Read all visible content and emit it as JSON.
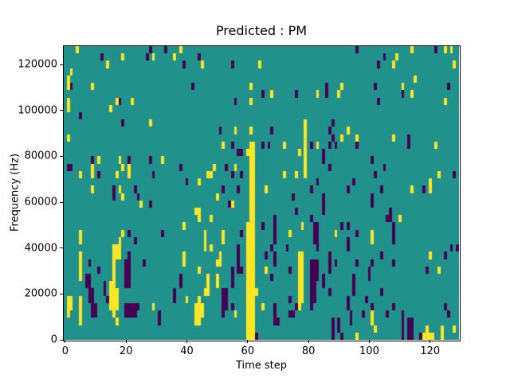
{
  "chart": {
    "title": "Predicted : PM",
    "xlabel": "Time step",
    "ylabel": "Frequency (Hz)"
  },
  "chart_data": {
    "type": "heatmap",
    "title": "Predicted : PM",
    "xlabel": "Time step",
    "ylabel": "Frequency (Hz)",
    "x_ticks": [
      0,
      20,
      40,
      60,
      80,
      100,
      120
    ],
    "y_ticks": [
      0,
      20000,
      40000,
      60000,
      80000,
      100000,
      120000
    ],
    "x_range": [
      -0.5,
      129.5
    ],
    "y_range": [
      0,
      128000
    ],
    "n_cols": 130,
    "n_rows": 40,
    "legend": "rows listed top (128000 Hz) to bottom (0 Hz); Y = high value (yellow), P = low value (purple), all other cells = mid value (teal)",
    "colors": {
      "mid": "#21918c",
      "high": "#fde725",
      "low": "#440154"
    },
    "rows": [
      {
        "r": 0,
        "Y": [
          4,
          38,
          114,
          125,
          127
        ],
        "P": [
          28,
          33,
          96,
          122
        ]
      },
      {
        "r": 1,
        "Y": [
          19,
          29,
          36,
          109
        ],
        "P": [
          12,
          27,
          44,
          105
        ]
      },
      {
        "r": 2,
        "Y": [
          14,
          45,
          64,
          108,
          128
        ],
        "P": [
          39,
          55,
          103
        ]
      },
      {
        "r": 3,
        "Y": [
          2
        ],
        "P": []
      },
      {
        "r": 4,
        "Y": [
          1,
          115
        ],
        "P": []
      },
      {
        "r": 5,
        "Y": [
          1,
          9,
          61,
          91,
          111
        ],
        "P": [
          2,
          42,
          86,
          102,
          126
        ]
      },
      {
        "r": 6,
        "Y": [
          68,
          83,
          90,
          114
        ],
        "P": [
          65,
          76,
          86,
          111
        ]
      },
      {
        "r": 7,
        "Y": [
          1,
          17,
          22,
          61,
          125
        ],
        "P": [
          18,
          56,
          103
        ]
      },
      {
        "r": 8,
        "Y": [
          1,
          15
        ],
        "P": []
      },
      {
        "r": 9,
        "Y": [],
        "P": [
          5
        ]
      },
      {
        "r": 10,
        "Y": [
          28,
          79
        ],
        "P": [
          19,
          88
        ]
      },
      {
        "r": 11,
        "Y": [
          56,
          61,
          79,
          93
        ],
        "P": [
          51,
          68,
          87
        ]
      },
      {
        "r": 12,
        "Y": [
          1,
          79,
          91,
          96,
          108
        ],
        "P": [
          88,
          113
        ]
      },
      {
        "r": 13,
        "Y": [
          52,
          61,
          62,
          72,
          79,
          83,
          122
        ],
        "P": [
          55,
          65,
          67,
          81,
          87,
          89,
          96,
          113
        ]
      },
      {
        "r": 14,
        "Y": [
          60,
          61,
          62,
          77,
          79
        ],
        "P": [
          57,
          58,
          85
        ]
      },
      {
        "r": 15,
        "Y": [
          11,
          18,
          32,
          61,
          62,
          79
        ],
        "P": [
          9,
          21,
          28,
          85,
          101
        ]
      },
      {
        "r": 16,
        "Y": [
          9,
          19,
          21,
          49,
          56,
          61,
          62,
          79
        ],
        "P": [
          1,
          2,
          38,
          53,
          87,
          105
        ]
      },
      {
        "r": 17,
        "Y": [
          5,
          9,
          17,
          21,
          47,
          48,
          61,
          62,
          72,
          76,
          79,
          123
        ],
        "P": [
          11,
          29,
          55,
          58,
          102,
          128
        ]
      },
      {
        "r": 18,
        "Y": [
          44,
          61,
          62,
          120
        ],
        "P": [
          40,
          83,
          95
        ]
      },
      {
        "r": 19,
        "Y": [
          9,
          18,
          61,
          62,
          66,
          114,
          120
        ],
        "P": [
          16,
          23,
          52,
          57,
          81,
          93,
          104,
          118
        ]
      },
      {
        "r": 20,
        "Y": [
          19,
          50,
          61,
          62
        ],
        "P": [
          16,
          24,
          75,
          85,
          101
        ]
      },
      {
        "r": 21,
        "Y": [
          25,
          55,
          61,
          62
        ],
        "P": [
          28,
          54,
          85,
          101
        ]
      },
      {
        "r": 22,
        "Y": [
          43,
          44,
          61,
          62
        ],
        "P": [
          76,
          85,
          107
        ]
      },
      {
        "r": 23,
        "Y": [
          44,
          48,
          61,
          62,
          110
        ],
        "P": [
          69,
          81,
          106,
          107
        ]
      },
      {
        "r": 24,
        "Y": [
          39,
          60,
          61,
          62,
          78
        ],
        "P": [
          65,
          69,
          82,
          83,
          91,
          93,
          108
        ]
      },
      {
        "r": 25,
        "Y": [
          5,
          19,
          46,
          52,
          60,
          61,
          62,
          74,
          89,
          101
        ],
        "P": [
          21,
          32,
          58,
          69,
          82,
          83,
          96,
          108
        ]
      },
      {
        "r": 26,
        "Y": [
          5,
          18,
          46,
          52,
          60,
          61,
          62,
          101
        ],
        "P": [
          23,
          69,
          82,
          83,
          93,
          108
        ]
      },
      {
        "r": 27,
        "Y": [
          16,
          17,
          18,
          46,
          48,
          60,
          61,
          62
        ],
        "P": [
          57,
          68,
          73,
          83,
          93,
          127,
          129
        ]
      },
      {
        "r": 28,
        "Y": [
          5,
          16,
          17,
          18,
          39,
          51,
          60,
          61,
          62,
          77,
          78,
          120
        ],
        "P": [
          21,
          57,
          66,
          69,
          87,
          104,
          125
        ]
      },
      {
        "r": 29,
        "Y": [
          5,
          16,
          39,
          50,
          51,
          60,
          61,
          62,
          77,
          78
        ],
        "P": [
          8,
          20,
          21,
          26,
          57,
          69,
          81,
          82,
          83,
          87,
          89,
          96,
          101,
          108
        ]
      },
      {
        "r": 30,
        "Y": [
          5,
          16,
          44,
          60,
          61,
          62,
          66,
          77,
          78,
          123
        ],
        "P": [
          11,
          20,
          21,
          55,
          57,
          58,
          74,
          81,
          82,
          83,
          87,
          100,
          119
        ]
      },
      {
        "r": 31,
        "Y": [
          5,
          16,
          47,
          50,
          60,
          61,
          62,
          77,
          78
        ],
        "P": [
          7,
          8,
          20,
          21,
          38,
          55,
          68,
          81,
          82,
          83,
          85,
          95,
          100
        ]
      },
      {
        "r": 32,
        "Y": [
          15,
          16,
          47,
          50,
          60,
          61,
          62,
          77,
          78
        ],
        "P": [
          7,
          8,
          13,
          20,
          21,
          38,
          55,
          81,
          82,
          85,
          95
        ]
      },
      {
        "r": 33,
        "Y": [
          15,
          16,
          17,
          46,
          47,
          60,
          61,
          62,
          63,
          77,
          78
        ],
        "P": [
          8,
          9,
          13,
          36,
          52,
          53,
          81,
          82,
          87,
          95,
          104
        ]
      },
      {
        "r": 34,
        "Y": [
          1,
          2,
          5,
          15,
          16,
          17,
          40,
          44,
          60,
          61,
          62,
          77,
          78
        ],
        "P": [
          8,
          9,
          14,
          36,
          52,
          53,
          74,
          81,
          82,
          93,
          99
        ]
      },
      {
        "r": 35,
        "Y": [
          1,
          2,
          5,
          15,
          16,
          17,
          29,
          43,
          44,
          45,
          60,
          61,
          62,
          65,
          77
        ],
        "P": [
          9,
          10,
          20,
          21,
          22,
          23,
          24,
          52,
          53,
          55,
          69,
          76,
          81,
          93,
          101,
          108,
          125
        ]
      },
      {
        "r": 36,
        "Y": [
          1,
          5,
          16,
          43,
          44,
          45,
          56,
          60,
          61,
          62,
          101
        ],
        "P": [
          9,
          10,
          20,
          21,
          22,
          23,
          31,
          52,
          69,
          74,
          75,
          94,
          98,
          106,
          111,
          126
        ]
      },
      {
        "r": 37,
        "Y": [
          5,
          17,
          43,
          44,
          60,
          61,
          62,
          101
        ],
        "P": [
          31,
          69,
          70,
          88,
          90,
          94,
          111,
          113,
          114
        ]
      },
      {
        "r": 38,
        "Y": [
          60,
          61,
          62,
          102,
          119,
          124,
          128
        ],
        "P": [
          88,
          90,
          111,
          113,
          114
        ]
      },
      {
        "r": 39,
        "Y": [
          60,
          61,
          62,
          96,
          118,
          119,
          120,
          121,
          124
        ],
        "P": [
          63,
          88,
          91,
          111,
          113,
          114,
          117
        ]
      }
    ]
  }
}
